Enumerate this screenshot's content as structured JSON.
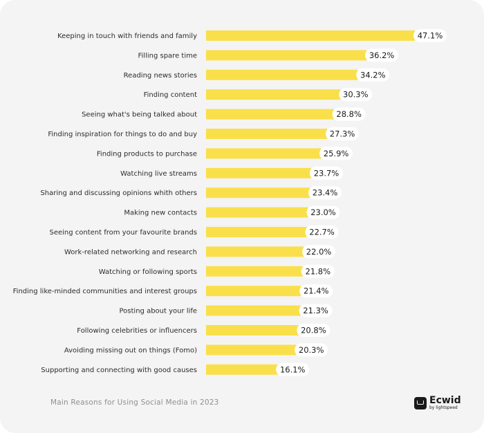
{
  "chart_data": {
    "type": "bar",
    "orientation": "horizontal",
    "categories": [
      "Keeping in touch with friends and family",
      "Filling spare time",
      "Reading news stories",
      "Finding content",
      "Seeing what's being talked about",
      "Finding inspiration for things to do and buy",
      "Finding products to purchase",
      "Watching live streams",
      "Sharing and discussing opinions whith others",
      "Making new contacts",
      "Seeing content from your favourite brands",
      "Work-related networking and research",
      "Watching or following sports",
      "Finding like-minded communities and interest groups",
      "Posting about your life",
      "Following celebrities or influencers",
      "Avoiding missing out on things (Fomo)",
      "Supporting and connecting with good causes"
    ],
    "values": [
      47.1,
      36.2,
      34.2,
      30.3,
      28.8,
      27.3,
      25.9,
      23.7,
      23.4,
      23.0,
      22.7,
      22.0,
      21.8,
      21.4,
      21.3,
      20.8,
      20.3,
      16.1
    ],
    "value_labels": [
      "47.1%",
      "36.2%",
      "34.2%",
      "30.3%",
      "28.8%",
      "27.3%",
      "25.9%",
      "23.7%",
      "23.4%",
      "23.0%",
      "22.7%",
      "22.0%",
      "21.8%",
      "21.4%",
      "21.3%",
      "20.8%",
      "20.3%",
      "16.1%"
    ],
    "title": "Main Reasons for Using Social Media in 2023",
    "xlabel": "",
    "ylabel": "",
    "xlim": [
      0,
      47.1
    ],
    "grid": false,
    "bar_color": "#f9e04b"
  },
  "footer": {
    "caption": "Main Reasons for Using Social Media in 2023",
    "brand_name": "Ecwid",
    "brand_sub": "by lightspeed"
  }
}
